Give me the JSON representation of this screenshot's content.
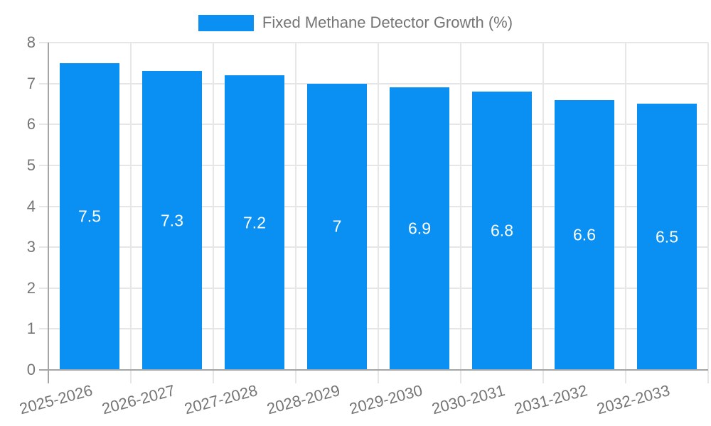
{
  "chart_data": {
    "type": "bar",
    "title": "Fixed Methane Detector Growth (%)",
    "legend": {
      "position": "top-center",
      "label": "Fixed Methane Detector Growth (%)",
      "swatch": "rect"
    },
    "categories": [
      "2025-2026",
      "2026-2027",
      "2027-2028",
      "2028-2029",
      "2029-2030",
      "2030-2031",
      "2031-2032",
      "2032-2033"
    ],
    "series": [
      {
        "name": "Fixed Methane Detector Growth (%)",
        "values": [
          7.5,
          7.3,
          7.2,
          7,
          6.9,
          6.8,
          6.6,
          6.5
        ]
      }
    ],
    "bar_value_labels": [
      "7.5",
      "7.3",
      "7.2",
      "7",
      "6.9",
      "6.8",
      "6.6",
      "6.5"
    ],
    "xlabel": "",
    "ylabel": "",
    "ylim": [
      0,
      8
    ],
    "y_ticks": [
      "0",
      "1",
      "2",
      "3",
      "4",
      "5",
      "6",
      "7",
      "8"
    ],
    "grid": true,
    "x_label_rotation_deg": -15,
    "colors": {
      "bar": "#0a8ff2",
      "text": "#757575",
      "grid": "#e6e6e6",
      "axis": "#a5a5a5",
      "bar_label": "#ffffff",
      "background": "#ffffff"
    }
  }
}
